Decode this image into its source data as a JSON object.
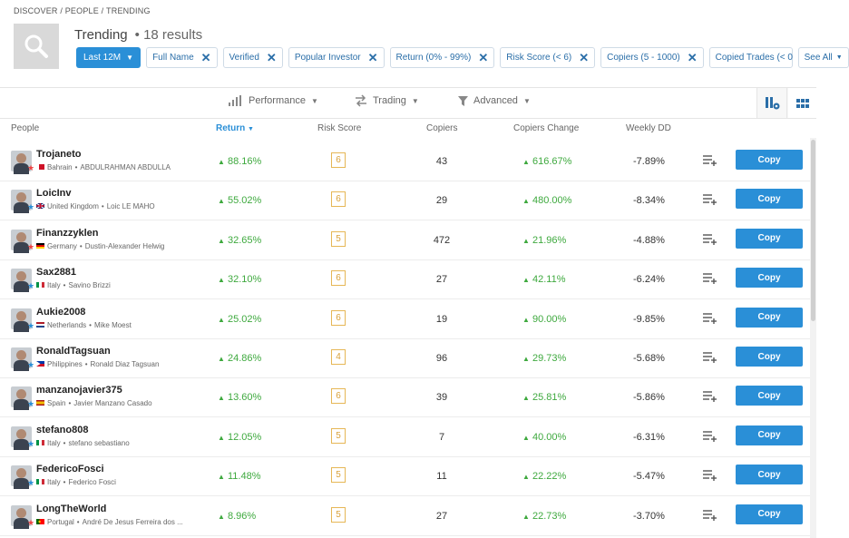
{
  "breadcrumb": {
    "items": [
      "DISCOVER",
      "/",
      "PEOPLE",
      "/",
      "TRENDING"
    ]
  },
  "header": {
    "title": "Trending",
    "results": "• 18 results"
  },
  "filters": {
    "period": "Last 12M",
    "chips": [
      "Full Name",
      "Verified",
      "Popular Investor",
      "Return (0% - 99%)",
      "Risk Score (< 6)",
      "Copiers (5 - 1000)",
      "Copied Trades (< 0"
    ],
    "see_all": "See All"
  },
  "toolbar": {
    "performance": "Performance",
    "trading": "Trading",
    "advanced": "Advanced"
  },
  "columns": {
    "people": "People",
    "return": "Return",
    "risk": "Risk Score",
    "copiers": "Copiers",
    "change": "Copiers Change",
    "dd": "Weekly DD"
  },
  "copy_label": "Copy",
  "rows": [
    {
      "username": "Trojaneto",
      "country": "Bahrain",
      "fullname": "ABDULRAHMAN ABDULLA",
      "return": "88.16%",
      "risk": "6",
      "copiers": "43",
      "change": "616.67%",
      "dd": "-7.89%"
    },
    {
      "username": "LoicInv",
      "country": "United Kingdom",
      "fullname": "Loic LE MAHO",
      "return": "55.02%",
      "risk": "6",
      "copiers": "29",
      "change": "480.00%",
      "dd": "-8.34%"
    },
    {
      "username": "Finanzzyklen",
      "country": "Germany",
      "fullname": "Dustin-Alexander Helwig",
      "return": "32.65%",
      "risk": "5",
      "copiers": "472",
      "change": "21.96%",
      "dd": "-4.88%"
    },
    {
      "username": "Sax2881",
      "country": "Italy",
      "fullname": "Savino Brizzi",
      "return": "32.10%",
      "risk": "6",
      "copiers": "27",
      "change": "42.11%",
      "dd": "-6.24%"
    },
    {
      "username": "Aukie2008",
      "country": "Netherlands",
      "fullname": "Mike Moest",
      "return": "25.02%",
      "risk": "6",
      "copiers": "19",
      "change": "90.00%",
      "dd": "-9.85%"
    },
    {
      "username": "RonaldTagsuan",
      "country": "Philippines",
      "fullname": "Ronald Diaz Tagsuan",
      "return": "24.86%",
      "risk": "4",
      "copiers": "96",
      "change": "29.73%",
      "dd": "-5.68%"
    },
    {
      "username": "manzanojavier375",
      "country": "Spain",
      "fullname": "Javier Manzano Casado",
      "return": "13.60%",
      "risk": "6",
      "copiers": "39",
      "change": "25.81%",
      "dd": "-5.86%"
    },
    {
      "username": "stefano808",
      "country": "Italy",
      "fullname": "stefano sebastiano",
      "return": "12.05%",
      "risk": "5",
      "copiers": "7",
      "change": "40.00%",
      "dd": "-6.31%"
    },
    {
      "username": "FedericoFosci",
      "country": "Italy",
      "fullname": "Federico Fosci",
      "return": "11.48%",
      "risk": "5",
      "copiers": "11",
      "change": "22.22%",
      "dd": "-5.47%"
    },
    {
      "username": "LongTheWorld",
      "country": "Portugal",
      "fullname": "André De Jesus Ferreira dos ...",
      "return": "8.96%",
      "risk": "5",
      "copiers": "27",
      "change": "22.73%",
      "dd": "-3.70%"
    }
  ],
  "colors": {
    "accent": "#2a8fd7",
    "positive": "#3ea93e",
    "risk_border": "#e6b756"
  }
}
